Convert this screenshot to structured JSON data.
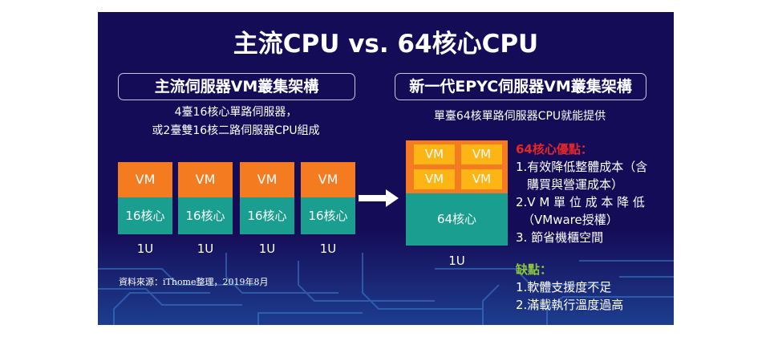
{
  "title": "主流CPU vs. 64核心CPU",
  "left": {
    "heading": "主流伺服器VM叢集架構",
    "desc": [
      "4臺16核心單路伺服器，",
      "或2臺雙16核二路伺服器CPU組成"
    ],
    "servers": [
      {
        "vm": "VM",
        "core": "16核心",
        "unit": "1U"
      },
      {
        "vm": "VM",
        "core": "16核心",
        "unit": "1U"
      },
      {
        "vm": "VM",
        "core": "16核心",
        "unit": "1U"
      },
      {
        "vm": "VM",
        "core": "16核心",
        "unit": "1U"
      }
    ]
  },
  "right": {
    "heading": "新一代EPYC伺服器VM叢集架構",
    "desc": "單臺64核單路伺服器CPU就能提供",
    "server": {
      "vms": [
        "VM",
        "VM",
        "VM",
        "VM"
      ],
      "core": "64核心",
      "unit": "1U"
    },
    "pros_title": "64核心優點：",
    "pros": [
      "1.有效降低整體成本（含",
      "購買與營運成本）",
      "2.V M 單 位 成 本 降 低",
      "（VMware授權）",
      "3. 節省機櫃空間"
    ],
    "cons_title": "缺點：",
    "cons": [
      "1.軟體支援度不足",
      "2.滿載執行溫度過高"
    ]
  },
  "source": "資料來源：iThome整理，2019年8月",
  "colors": {
    "background": "#150c57",
    "vm": "#f47b20",
    "core": "#1a9e8f",
    "vm_inner": "#fdb515",
    "pros": "#e3262a",
    "cons": "#8dc63f"
  }
}
